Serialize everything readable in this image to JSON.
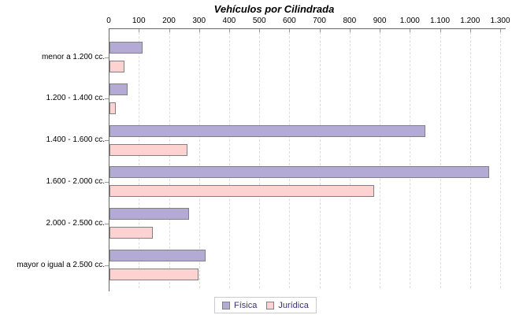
{
  "title": "Vehículos por Cilindrada",
  "chart_data": {
    "type": "bar",
    "orientation": "horizontal",
    "title": "Vehículos por Cilindrada",
    "categories": [
      "menor a 1.200 cc.",
      "1.200 - 1.400 cc.",
      "1.400 - 1.600 cc.",
      "1.600 - 2.000 cc.",
      "2.000 - 2.500 cc.",
      "mayor o igual a 2.500 cc."
    ],
    "series": [
      {
        "name": "Física",
        "color": "#b4aad6",
        "values": [
          110,
          60,
          1050,
          1260,
          265,
          320
        ]
      },
      {
        "name": "Jurídica",
        "color": "#ffd2d2",
        "values": [
          50,
          20,
          260,
          880,
          145,
          295
        ]
      }
    ],
    "xlim": [
      0,
      1300
    ],
    "x_ticks": [
      0,
      100,
      200,
      300,
      400,
      500,
      600,
      700,
      800,
      900,
      1000,
      1100,
      1200,
      1300
    ],
    "x_tick_labels": [
      "0",
      "100",
      "200",
      "300",
      "400",
      "500",
      "600",
      "700",
      "800",
      "900",
      "1.000",
      "1.100",
      "1.200",
      "1.300"
    ],
    "axis_position": "top",
    "grid": "vertical-dashed",
    "legend_position": "bottom-center"
  },
  "colors": {
    "bar_fisica": "#b4aad6",
    "bar_juridica": "#ffd2d2",
    "bar_border": "#808080",
    "axis": "#666666",
    "gridline": "#dcdcdc",
    "legend_text": "#3c3175",
    "legend_border": "#cccccc",
    "background": "#ffffff"
  }
}
